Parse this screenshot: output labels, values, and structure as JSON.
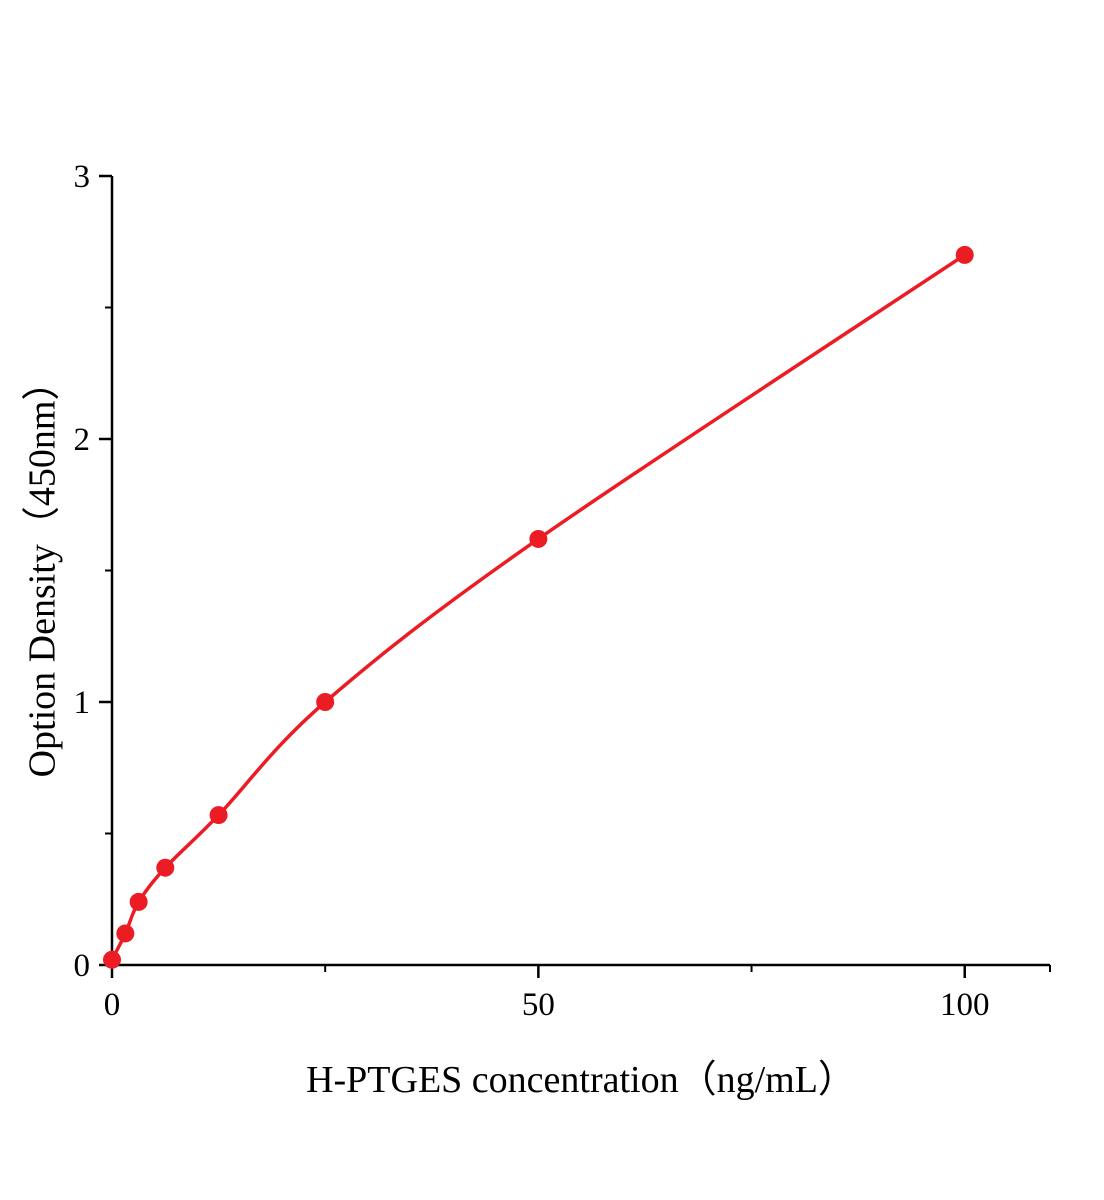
{
  "chart_data": {
    "type": "line",
    "title": "",
    "xlabel": "H-PTGES concentration（ng/mL）",
    "ylabel": "Option Density（450nm）",
    "x": [
      0,
      1.5625,
      3.125,
      6.25,
      12.5,
      25,
      50,
      100
    ],
    "y": [
      0.02,
      0.12,
      0.24,
      0.37,
      0.57,
      1.0,
      1.62,
      2.7
    ],
    "xlim": [
      0,
      110
    ],
    "ylim": [
      0,
      3
    ],
    "x_major_ticks": [
      0,
      50,
      100
    ],
    "x_minor_ticks": [
      25,
      75,
      110
    ],
    "y_major_ticks": [
      0,
      1,
      2,
      3
    ],
    "y_minor_ticks": [
      0.5,
      1.5,
      2.5
    ],
    "grid": "off",
    "legend": "none",
    "line_color": "#ec1c24",
    "axis_color": "#000000",
    "marker": "circle",
    "marker_size": 9
  }
}
